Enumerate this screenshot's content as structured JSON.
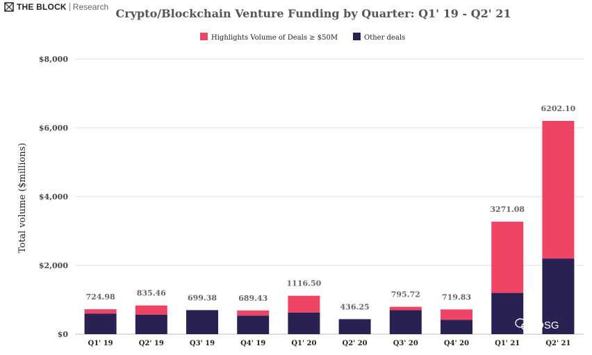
{
  "brand": {
    "name": "THE BLOCK",
    "sub": "Research"
  },
  "watermark": {
    "text": "IOSG"
  },
  "colors": {
    "highlight": "#ef4565",
    "other": "#2a2152",
    "grid": "#e0e0e0"
  },
  "chart_data": {
    "type": "bar",
    "stacked": true,
    "title": "Crypto/Blockchain Venture Funding by Quarter: Q1' 19 - Q2' 21",
    "ylabel": "Total volume ($millions)",
    "xlabel": "",
    "ylim": [
      0,
      8000
    ],
    "yticks": [
      0,
      2000,
      4000,
      6000,
      8000
    ],
    "ytick_labels": [
      "$0",
      "$2,000",
      "$4,000",
      "$6,000",
      "$8,000"
    ],
    "grid": true,
    "legend_position": "top",
    "categories": [
      "Q1' 19",
      "Q2' 19",
      "Q3' 19",
      "Q4' 19",
      "Q1' 20",
      "Q2' 20",
      "Q3' 20",
      "Q4' 20",
      "Q1' 21",
      "Q2' 21"
    ],
    "series": [
      {
        "name": "Other deals",
        "color": "#2a2152",
        "values": [
          600,
          570,
          699.38,
          540,
          630,
          436.25,
          700,
          420,
          1200,
          2200
        ]
      },
      {
        "name": "Highlights Volume of Deals ≥ $50M",
        "color": "#ef4565",
        "values": [
          124.98,
          265.46,
          0,
          149.43,
          486.5,
          0,
          95.72,
          299.83,
          2071.08,
          4002.1
        ]
      }
    ],
    "totals": [
      "724.98",
      "835.46",
      "699.38",
      "689.43",
      "1116.50",
      "436.25",
      "795.72",
      "719.83",
      "3271.08",
      "6202.10"
    ]
  }
}
